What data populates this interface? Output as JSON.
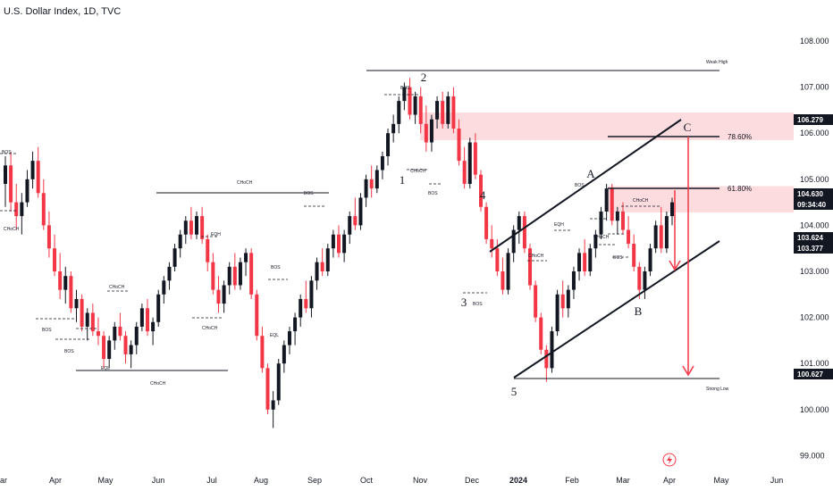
{
  "header": {
    "title": "U.S. Dollar Index, 1D, TVC"
  },
  "colors": {
    "up": "#131722",
    "down": "#f23645",
    "zone": "#fcdcdf",
    "arrow": "#f23645",
    "line": "#131722"
  },
  "chart_data": {
    "type": "candlestick",
    "title": "U.S. Dollar Index, 1D, TVC",
    "y_axis": {
      "ticks": [
        "108.000",
        "107.000",
        "106.000",
        "105.000",
        "104.000",
        "103.000",
        "102.000",
        "101.000",
        "100.000",
        "99.000"
      ],
      "ylim": [
        98.9,
        108.5
      ]
    },
    "x_axis": {
      "ticks": [
        {
          "label": "ar",
          "bold": false
        },
        {
          "label": "Apr",
          "bold": false
        },
        {
          "label": "May",
          "bold": false
        },
        {
          "label": "Jun",
          "bold": false
        },
        {
          "label": "Jul",
          "bold": false
        },
        {
          "label": "Aug",
          "bold": false
        },
        {
          "label": "Sep",
          "bold": false
        },
        {
          "label": "Oct",
          "bold": false
        },
        {
          "label": "Nov",
          "bold": false
        },
        {
          "label": "Dec",
          "bold": false
        },
        {
          "label": "2024",
          "bold": true
        },
        {
          "label": "Feb",
          "bold": false
        },
        {
          "label": "Mar",
          "bold": false
        },
        {
          "label": "Apr",
          "bold": false
        },
        {
          "label": "May",
          "bold": false
        },
        {
          "label": "Jun",
          "bold": false
        }
      ]
    },
    "price_tags": [
      {
        "value": "106.279",
        "style": "dark"
      },
      {
        "value": "104.630",
        "style": "dark"
      },
      {
        "value": "09:34:40",
        "style": "dark"
      },
      {
        "value": "103.624",
        "style": "dark"
      },
      {
        "value": "103.377",
        "style": "dark"
      },
      {
        "value": "100.627",
        "style": "dark"
      }
    ],
    "fib_labels": [
      "78.60%",
      "61.80%"
    ],
    "level_labels": [
      "Weak High",
      "Strong Low"
    ],
    "wave_labels": [
      "1",
      "2",
      "3",
      "4",
      "5",
      "A",
      "B",
      "C"
    ],
    "structure_labels": [
      "CHoCH",
      "CHoCH",
      "BOS",
      "BOS",
      "BOS",
      "EQL",
      "CHoCH",
      "CHoCH",
      "EQH",
      "CHoCH",
      "BOS",
      "EQL",
      "BOS",
      "CHoCH",
      "BOS",
      "BOS",
      "BOS",
      "CHoCH",
      "EQH",
      "CHoCH",
      "BOS",
      "CHoCH",
      "BOS"
    ],
    "candles": [
      [
        104.9,
        105.5,
        104.4,
        105.3
      ],
      [
        105.3,
        105.6,
        104.3,
        104.5
      ],
      [
        104.5,
        104.9,
        103.9,
        104.2
      ],
      [
        104.2,
        104.7,
        103.8,
        104.5
      ],
      [
        104.5,
        105.2,
        104.4,
        105.0
      ],
      [
        105.0,
        105.6,
        104.8,
        105.4
      ],
      [
        105.4,
        105.7,
        104.6,
        104.7
      ],
      [
        104.7,
        105.0,
        103.9,
        104.0
      ],
      [
        104.0,
        104.3,
        103.3,
        103.5
      ],
      [
        103.5,
        103.8,
        102.9,
        103.0
      ],
      [
        103.0,
        103.4,
        102.4,
        102.6
      ],
      [
        102.6,
        103.1,
        102.3,
        102.9
      ],
      [
        102.9,
        103.0,
        102.1,
        102.2
      ],
      [
        102.2,
        102.6,
        101.9,
        102.4
      ],
      [
        102.4,
        102.5,
        101.7,
        101.8
      ],
      [
        101.8,
        102.2,
        101.5,
        102.1
      ],
      [
        102.1,
        102.3,
        101.6,
        101.7
      ],
      [
        101.7,
        102.0,
        101.4,
        101.6
      ],
      [
        101.6,
        101.7,
        100.9,
        101.1
      ],
      [
        101.1,
        101.6,
        100.9,
        101.5
      ],
      [
        101.5,
        101.9,
        101.3,
        101.8
      ],
      [
        101.8,
        102.1,
        101.5,
        101.6
      ],
      [
        101.6,
        101.7,
        101.0,
        101.2
      ],
      [
        101.2,
        101.5,
        100.9,
        101.4
      ],
      [
        101.4,
        101.9,
        101.2,
        101.8
      ],
      [
        101.8,
        102.3,
        101.7,
        102.2
      ],
      [
        102.2,
        102.4,
        101.6,
        101.7
      ],
      [
        101.7,
        102.0,
        101.4,
        101.9
      ],
      [
        101.9,
        102.6,
        101.8,
        102.5
      ],
      [
        102.5,
        102.9,
        102.3,
        102.8
      ],
      [
        102.8,
        103.2,
        102.6,
        103.1
      ],
      [
        103.1,
        103.6,
        103.0,
        103.5
      ],
      [
        103.5,
        103.9,
        103.3,
        103.8
      ],
      [
        103.8,
        104.2,
        103.6,
        104.1
      ],
      [
        104.1,
        104.4,
        103.7,
        103.8
      ],
      [
        103.8,
        104.3,
        103.7,
        104.2
      ],
      [
        104.2,
        104.4,
        103.6,
        103.7
      ],
      [
        103.7,
        103.8,
        103.0,
        103.2
      ],
      [
        103.2,
        103.4,
        102.5,
        102.6
      ],
      [
        102.6,
        102.9,
        102.1,
        102.3
      ],
      [
        102.3,
        102.8,
        102.1,
        102.7
      ],
      [
        102.7,
        103.2,
        102.5,
        103.1
      ],
      [
        103.1,
        103.4,
        102.6,
        102.7
      ],
      [
        102.7,
        103.3,
        102.6,
        103.2
      ],
      [
        103.2,
        103.5,
        102.9,
        103.4
      ],
      [
        103.4,
        103.5,
        102.4,
        102.5
      ],
      [
        102.5,
        102.6,
        101.5,
        101.6
      ],
      [
        101.6,
        101.8,
        100.8,
        100.9
      ],
      [
        100.9,
        101.0,
        99.9,
        100.0
      ],
      [
        100.0,
        100.4,
        99.6,
        100.2
      ],
      [
        100.2,
        101.1,
        100.1,
        101.0
      ],
      [
        101.0,
        101.5,
        100.8,
        101.4
      ],
      [
        101.4,
        101.8,
        101.2,
        101.7
      ],
      [
        101.7,
        102.1,
        101.4,
        102.0
      ],
      [
        102.0,
        102.5,
        101.8,
        102.4
      ],
      [
        102.4,
        102.8,
        102.1,
        102.2
      ],
      [
        102.2,
        102.9,
        102.0,
        102.8
      ],
      [
        102.8,
        103.3,
        102.6,
        103.2
      ],
      [
        103.2,
        103.5,
        102.9,
        103.0
      ],
      [
        103.0,
        103.6,
        102.9,
        103.5
      ],
      [
        103.5,
        103.9,
        103.3,
        103.8
      ],
      [
        103.8,
        104.0,
        103.3,
        103.4
      ],
      [
        103.4,
        103.9,
        103.2,
        103.8
      ],
      [
        103.8,
        104.3,
        103.6,
        104.2
      ],
      [
        104.2,
        104.6,
        103.9,
        104.0
      ],
      [
        104.0,
        104.7,
        103.9,
        104.6
      ],
      [
        104.6,
        105.1,
        104.4,
        105.0
      ],
      [
        105.0,
        105.3,
        104.6,
        104.8
      ],
      [
        104.8,
        105.3,
        104.7,
        105.2
      ],
      [
        105.2,
        105.6,
        105.0,
        105.5
      ],
      [
        105.5,
        106.1,
        105.3,
        106.0
      ],
      [
        106.0,
        106.4,
        105.8,
        106.2
      ],
      [
        106.2,
        106.8,
        106.0,
        106.7
      ],
      [
        106.7,
        107.1,
        106.5,
        107.0
      ],
      [
        107.0,
        107.2,
        106.3,
        106.4
      ],
      [
        106.4,
        106.9,
        106.2,
        106.8
      ],
      [
        106.8,
        107.0,
        106.0,
        106.2
      ],
      [
        106.2,
        106.6,
        105.6,
        105.8
      ],
      [
        105.8,
        106.4,
        105.6,
        106.3
      ],
      [
        106.3,
        106.8,
        106.1,
        106.7
      ],
      [
        106.7,
        106.9,
        106.1,
        106.2
      ],
      [
        106.2,
        106.9,
        106.1,
        106.8
      ],
      [
        106.8,
        107.0,
        106.0,
        106.1
      ],
      [
        106.1,
        106.3,
        105.3,
        105.4
      ],
      [
        105.4,
        105.7,
        104.8,
        104.9
      ],
      [
        104.9,
        105.9,
        104.8,
        105.8
      ],
      [
        105.8,
        106.0,
        105.0,
        105.1
      ],
      [
        105.1,
        105.2,
        104.3,
        104.4
      ],
      [
        104.4,
        104.5,
        103.6,
        103.7
      ],
      [
        103.7,
        104.0,
        103.3,
        103.5
      ],
      [
        103.5,
        103.7,
        102.9,
        103.0
      ],
      [
        103.0,
        103.3,
        102.5,
        102.6
      ],
      [
        102.6,
        103.5,
        102.5,
        103.4
      ],
      [
        103.4,
        104.0,
        103.2,
        103.9
      ],
      [
        103.9,
        104.3,
        103.6,
        104.2
      ],
      [
        104.2,
        104.3,
        103.4,
        103.5
      ],
      [
        103.5,
        103.6,
        102.6,
        102.7
      ],
      [
        102.7,
        102.8,
        101.9,
        102.0
      ],
      [
        102.0,
        102.1,
        101.2,
        101.3
      ],
      [
        101.3,
        101.4,
        100.6,
        100.9
      ],
      [
        100.9,
        101.8,
        100.8,
        101.7
      ],
      [
        101.7,
        102.6,
        101.6,
        102.5
      ],
      [
        102.5,
        102.8,
        102.0,
        102.2
      ],
      [
        102.2,
        102.7,
        102.0,
        102.6
      ],
      [
        102.6,
        103.1,
        102.4,
        103.0
      ],
      [
        103.0,
        103.5,
        102.8,
        103.4
      ],
      [
        103.4,
        103.7,
        102.9,
        103.0
      ],
      [
        103.0,
        103.6,
        102.9,
        103.5
      ],
      [
        103.5,
        103.9,
        103.3,
        103.8
      ],
      [
        103.8,
        104.4,
        103.7,
        104.3
      ],
      [
        104.3,
        104.9,
        104.1,
        104.8
      ],
      [
        104.8,
        104.9,
        104.0,
        104.1
      ],
      [
        104.1,
        104.4,
        103.8,
        104.3
      ],
      [
        104.3,
        104.5,
        103.8,
        103.9
      ],
      [
        103.9,
        104.2,
        103.5,
        103.6
      ],
      [
        103.6,
        103.8,
        103.0,
        103.1
      ],
      [
        103.1,
        103.2,
        102.4,
        102.6
      ],
      [
        102.6,
        103.1,
        102.4,
        103.0
      ],
      [
        103.0,
        103.6,
        102.9,
        103.5
      ],
      [
        103.5,
        104.1,
        103.4,
        104.0
      ],
      [
        104.0,
        104.4,
        103.4,
        103.5
      ],
      [
        103.5,
        104.3,
        103.4,
        104.2
      ],
      [
        104.2,
        104.6,
        104.0,
        104.5
      ]
    ]
  }
}
